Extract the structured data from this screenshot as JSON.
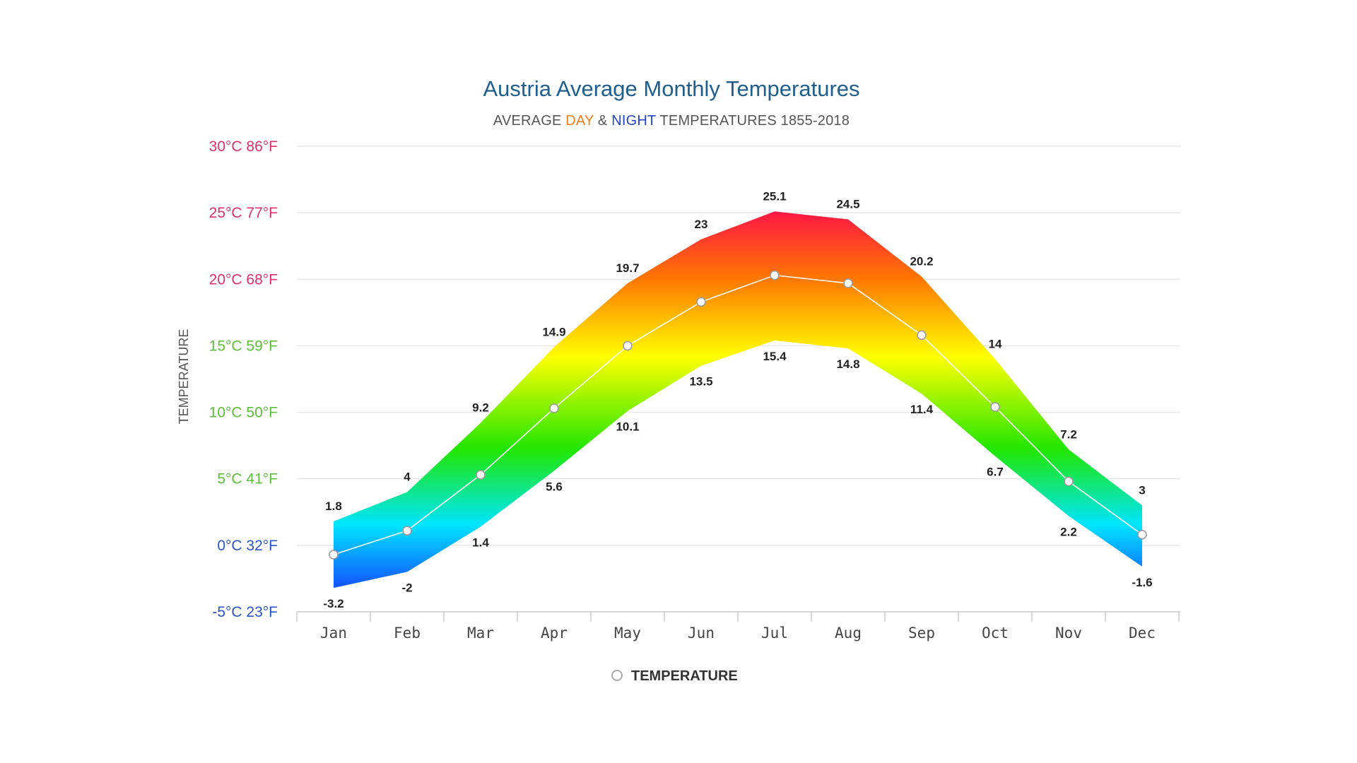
{
  "chart_data": {
    "type": "area",
    "title": "Austria Average Monthly Temperatures",
    "subtitle": {
      "prefix": "AVERAGE ",
      "day": "DAY",
      "amp": " & ",
      "night": "NIGHT",
      "suffix": " TEMPERATURES 1855-2018"
    },
    "ylabel": "TEMPERATURE",
    "ylim": [
      -5,
      30
    ],
    "y_ticks": [
      {
        "value": 30,
        "label": "30°C 86°F",
        "color": "#e0306a"
      },
      {
        "value": 25,
        "label": "25°C 77°F",
        "color": "#e0306a"
      },
      {
        "value": 20,
        "label": "20°C 68°F",
        "color": "#e0306a"
      },
      {
        "value": 15,
        "label": "15°C 59°F",
        "color": "#5cbf3a"
      },
      {
        "value": 10,
        "label": "10°C 50°F",
        "color": "#5cbf3a"
      },
      {
        "value": 5,
        "label": "5°C 41°F",
        "color": "#5cbf3a"
      },
      {
        "value": 0,
        "label": "0°C 32°F",
        "color": "#2a55c8"
      },
      {
        "value": -5,
        "label": "-5°C 23°F",
        "color": "#2a55c8"
      }
    ],
    "categories": [
      "Jan",
      "Feb",
      "Mar",
      "Apr",
      "May",
      "Jun",
      "Jul",
      "Aug",
      "Sep",
      "Oct",
      "Nov",
      "Dec"
    ],
    "series": [
      {
        "name": "DAY",
        "values": [
          1.8,
          4,
          9.2,
          14.9,
          19.7,
          23,
          25.1,
          24.5,
          20.2,
          14,
          7.2,
          3
        ]
      },
      {
        "name": "NIGHT",
        "values": [
          -3.2,
          -2,
          1.4,
          5.6,
          10.1,
          13.5,
          15.4,
          14.8,
          11.4,
          6.7,
          2.2,
          -1.6
        ]
      },
      {
        "name": "TEMPERATURE",
        "values": [
          -0.7,
          1.1,
          5.3,
          10.3,
          15,
          18.3,
          20.3,
          19.7,
          15.8,
          10.4,
          4.8,
          0.8
        ]
      }
    ],
    "legend": {
      "label": "TEMPERATURE",
      "placement": "bottom-center"
    },
    "grid": true,
    "gradient_colors": [
      "#1565ff",
      "#00e5ff",
      "#00e600",
      "#ffff00",
      "#ff8c00",
      "#ff1744"
    ]
  }
}
